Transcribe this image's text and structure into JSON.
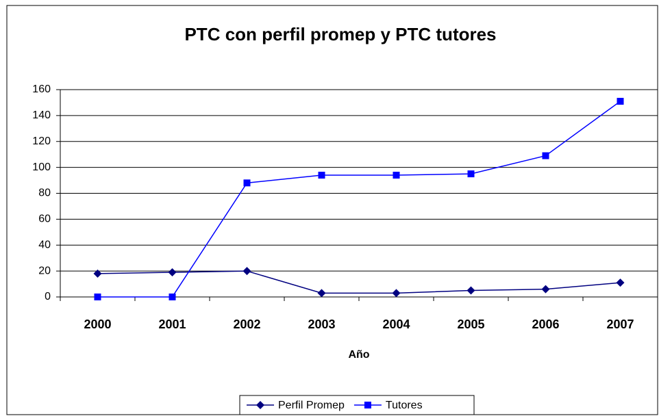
{
  "chart_data": {
    "type": "line",
    "title": "PTC con perfil promep y PTC tutores",
    "x_label": "Año",
    "categories": [
      "2000",
      "2001",
      "2002",
      "2003",
      "2004",
      "2005",
      "2006",
      "2007"
    ],
    "series": [
      {
        "name": "Perfil Promep",
        "color": "#000080",
        "marker": "diamond",
        "values": [
          18,
          19,
          20,
          3,
          3,
          5,
          6,
          11
        ]
      },
      {
        "name": "Tutores",
        "color": "#0000ff",
        "marker": "square",
        "values": [
          0,
          0,
          88,
          94,
          94,
          95,
          109,
          151
        ]
      }
    ],
    "ylim": [
      0,
      160
    ],
    "yticks": [
      0,
      20,
      40,
      60,
      80,
      100,
      120,
      140,
      160
    ],
    "grid": true,
    "legend": "bottom"
  }
}
